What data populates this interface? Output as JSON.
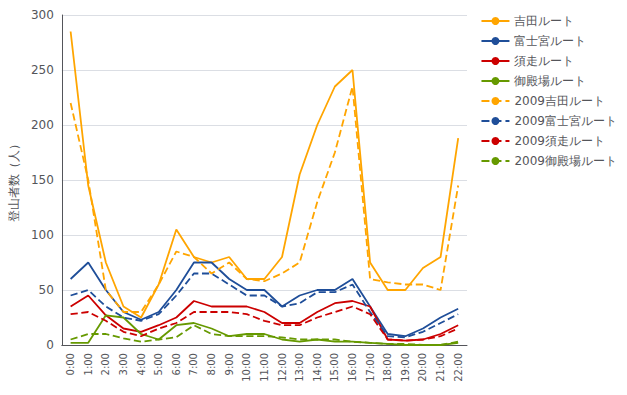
{
  "chart_data": {
    "type": "line",
    "categories": [
      "0:00",
      "1:00",
      "2:00",
      "3:00",
      "4:00",
      "5:00",
      "6:00",
      "7:00",
      "8:00",
      "9:00",
      "10:00",
      "11:00",
      "12:00",
      "13:00",
      "14:00",
      "15:00",
      "16:00",
      "17:00",
      "18:00",
      "19:00",
      "20:00",
      "21:00",
      "22:00"
    ],
    "series": [
      {
        "name": "吉田ルート",
        "color": "#FFA500",
        "line_style": "solid",
        "values": [
          285,
          145,
          75,
          35,
          25,
          55,
          105,
          80,
          75,
          80,
          60,
          60,
          80,
          155,
          200,
          235,
          250,
          75,
          50,
          50,
          70,
          80,
          188
        ]
      },
      {
        "name": "富士宮ルート",
        "color": "#1F4E99",
        "line_style": "solid",
        "values": [
          60,
          75,
          50,
          30,
          23,
          30,
          50,
          75,
          75,
          60,
          50,
          50,
          35,
          45,
          50,
          50,
          60,
          35,
          10,
          8,
          15,
          25,
          33
        ]
      },
      {
        "name": "須走ルート",
        "color": "#CC0000",
        "line_style": "solid",
        "values": [
          35,
          45,
          27,
          15,
          12,
          18,
          25,
          40,
          35,
          35,
          35,
          30,
          20,
          20,
          30,
          38,
          40,
          35,
          5,
          4,
          5,
          10,
          18
        ]
      },
      {
        "name": "御殿場ルート",
        "color": "#669900",
        "line_style": "solid",
        "values": [
          2,
          2,
          27,
          25,
          10,
          5,
          18,
          20,
          15,
          8,
          10,
          10,
          5,
          3,
          5,
          3,
          3,
          2,
          1,
          0,
          0,
          0,
          2
        ]
      },
      {
        "name": "2009吉田ルート",
        "color": "#FFA500",
        "line_style": "dashed",
        "values": [
          220,
          150,
          50,
          30,
          30,
          55,
          85,
          80,
          65,
          75,
          60,
          58,
          65,
          75,
          130,
          175,
          235,
          60,
          57,
          55,
          55,
          50,
          145
        ]
      },
      {
        "name": "2009富士宮ルート",
        "color": "#1F4E99",
        "line_style": "dashed",
        "values": [
          45,
          50,
          35,
          25,
          22,
          28,
          45,
          65,
          65,
          55,
          45,
          45,
          35,
          38,
          48,
          48,
          55,
          30,
          8,
          7,
          12,
          20,
          28
        ]
      },
      {
        "name": "2009須走ルート",
        "color": "#CC0000",
        "line_style": "dashed",
        "values": [
          28,
          30,
          22,
          12,
          8,
          15,
          20,
          30,
          30,
          30,
          28,
          22,
          18,
          18,
          25,
          30,
          35,
          28,
          5,
          4,
          5,
          8,
          15
        ]
      },
      {
        "name": "2009御殿場ルート",
        "color": "#669900",
        "line_style": "dashed",
        "values": [
          5,
          10,
          10,
          6,
          3,
          5,
          7,
          18,
          10,
          8,
          8,
          8,
          7,
          5,
          5,
          5,
          3,
          2,
          1,
          1,
          0,
          0,
          3
        ]
      }
    ],
    "ylabel": "登山者数（人）",
    "ylim": [
      0,
      300
    ],
    "yticks": [
      0,
      50,
      100,
      150,
      200,
      250,
      300
    ],
    "grid": true,
    "legend": "right"
  }
}
